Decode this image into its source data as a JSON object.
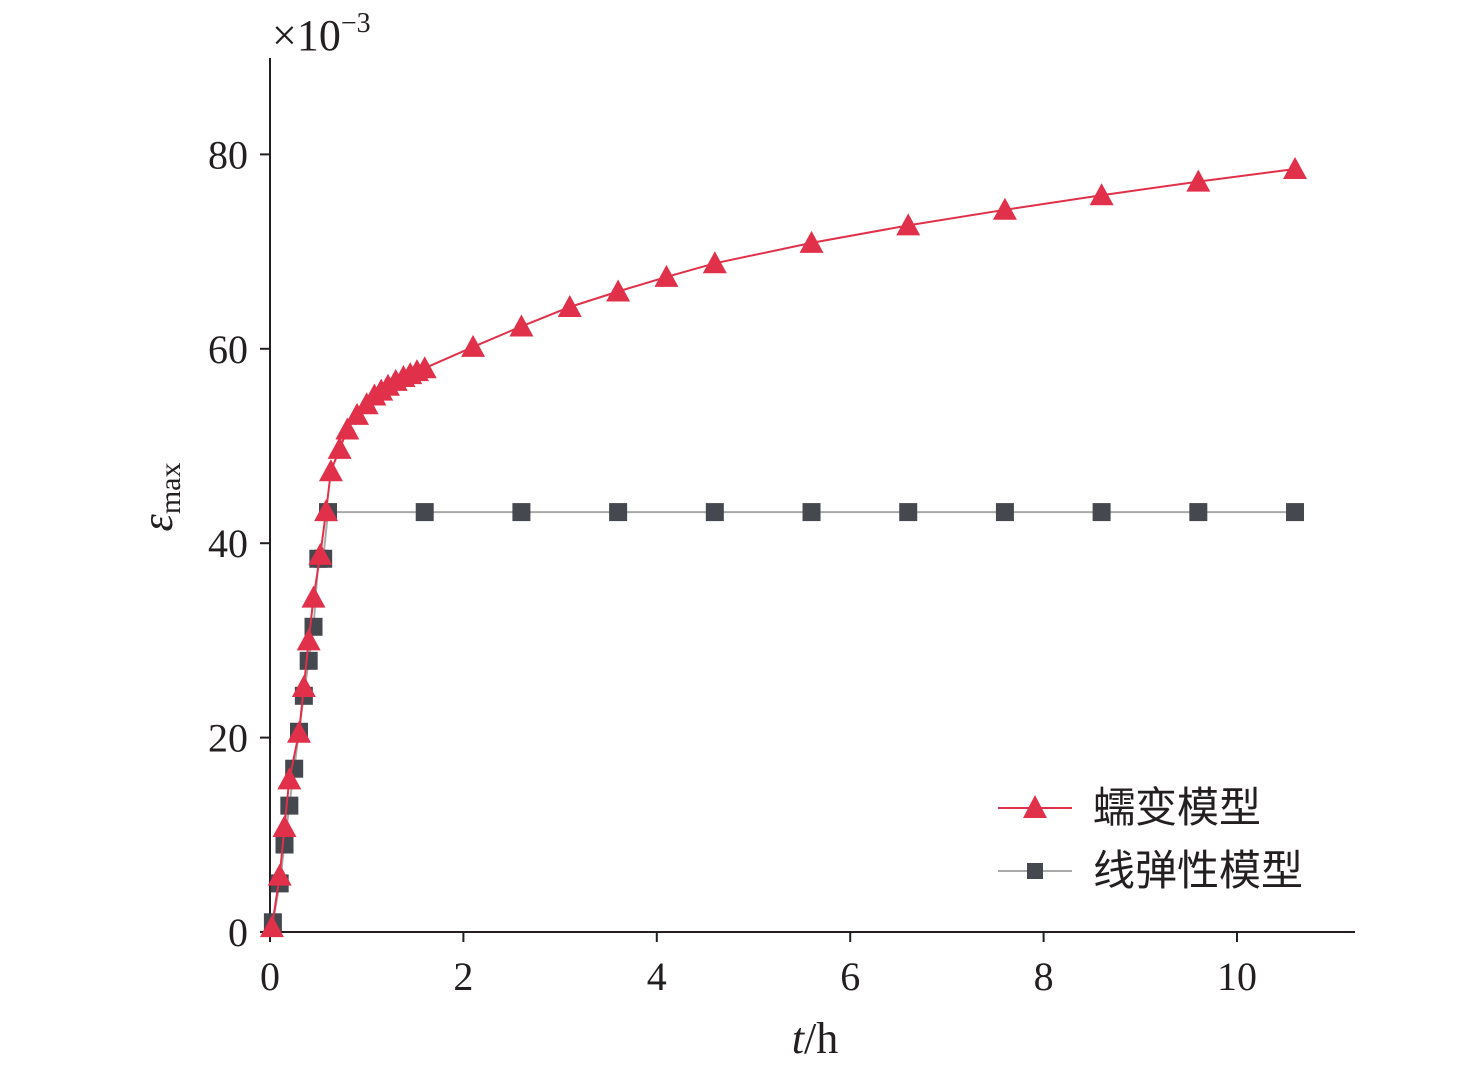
{
  "chart_data": {
    "type": "line",
    "xlabel_italic": "t",
    "xlabel_unit": "/h",
    "ylabel_symbol": "ε",
    "ylabel_sub": "max",
    "y_scale_base": "×10",
    "y_scale_exp": "−3",
    "xlim": [
      0,
      11.2
    ],
    "ylim": [
      0,
      90
    ],
    "xticks": [
      0,
      2,
      4,
      6,
      8,
      10
    ],
    "yticks": [
      0,
      20,
      40,
      60,
      80
    ],
    "legend_position": "bottom-right",
    "colors": {
      "creep": "#e0304a",
      "elastic": "#45484e"
    },
    "series": [
      {
        "name": "蠕变模型",
        "marker": "triangle",
        "x": [
          0.02,
          0.1,
          0.15,
          0.2,
          0.3,
          0.35,
          0.4,
          0.45,
          0.52,
          0.58,
          0.63,
          0.72,
          0.8,
          0.9,
          1.0,
          1.08,
          1.15,
          1.22,
          1.3,
          1.38,
          1.45,
          1.52,
          1.6,
          2.1,
          2.6,
          3.1,
          3.6,
          4.1,
          4.6,
          5.6,
          6.6,
          7.6,
          8.6,
          9.6,
          10.6
        ],
        "y": [
          0.5,
          5.8,
          10.8,
          15.7,
          20.5,
          25.2,
          30.0,
          34.4,
          38.8,
          43.3,
          47.4,
          49.7,
          51.7,
          53.2,
          54.3,
          55.2,
          55.7,
          56.2,
          56.7,
          57.1,
          57.4,
          57.7,
          58.0,
          60.2,
          62.3,
          64.3,
          65.9,
          67.4,
          68.8,
          70.9,
          72.7,
          74.3,
          75.8,
          77.2,
          78.5
        ]
      },
      {
        "name": "线弹性模型",
        "marker": "square",
        "x": [
          0.03,
          0.1,
          0.15,
          0.2,
          0.25,
          0.3,
          0.35,
          0.4,
          0.45,
          0.5,
          0.55,
          0.6,
          1.6,
          2.6,
          3.6,
          4.6,
          5.6,
          6.6,
          7.6,
          8.6,
          9.6,
          10.6
        ],
        "y": [
          1.0,
          5.0,
          9.0,
          13.0,
          16.8,
          20.6,
          24.3,
          27.9,
          31.4,
          38.4,
          38.4,
          43.2,
          43.2,
          43.2,
          43.2,
          43.2,
          43.2,
          43.2,
          43.2,
          43.2,
          43.2,
          43.2
        ]
      }
    ]
  }
}
